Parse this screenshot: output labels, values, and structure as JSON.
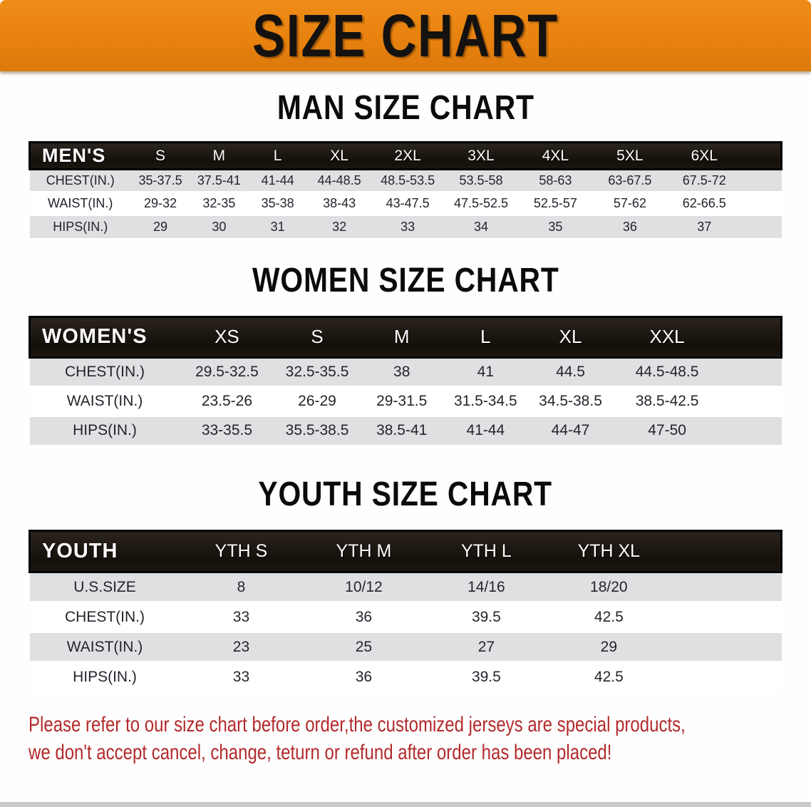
{
  "banner": {
    "title": "SIZE CHART",
    "bg_color": "#E8820F"
  },
  "sections": [
    {
      "heading": "MAN SIZE CHART",
      "table": {
        "header_label": "MEN'S",
        "columns": [
          "S",
          "M",
          "L",
          "XL",
          "2XL",
          "3XL",
          "4XL",
          "5XL",
          "6XL"
        ],
        "rows": [
          {
            "label": "CHEST(IN.)",
            "values": [
              "35-37.5",
              "37.5-41",
              "41-44",
              "44-48.5",
              "48.5-53.5",
              "53.5-58",
              "58-63",
              "63-67.5",
              "67.5-72"
            ]
          },
          {
            "label": "WAIST(IN.)",
            "values": [
              "29-32",
              "32-35",
              "35-38",
              "38-43",
              "43-47.5",
              "47.5-52.5",
              "52.5-57",
              "57-62",
              "62-66.5"
            ]
          },
          {
            "label": "HIPS(IN.)",
            "values": [
              "29",
              "30",
              "31",
              "32",
              "33",
              "34",
              "35",
              "36",
              "37"
            ]
          }
        ]
      }
    },
    {
      "heading": "WOMEN SIZE CHART",
      "table": {
        "header_label": "WOMEN'S",
        "columns": [
          "XS",
          "S",
          "M",
          "L",
          "XL",
          "XXL"
        ],
        "rows": [
          {
            "label": "CHEST(IN.)",
            "values": [
              "29.5-32.5",
              "32.5-35.5",
              "38",
              "41",
              "44.5",
              "44.5-48.5"
            ]
          },
          {
            "label": "WAIST(IN.)",
            "values": [
              "23.5-26",
              "26-29",
              "29-31.5",
              "31.5-34.5",
              "34.5-38.5",
              "38.5-42.5"
            ]
          },
          {
            "label": "HIPS(IN.)",
            "values": [
              "33-35.5",
              "35.5-38.5",
              "38.5-41",
              "41-44",
              "44-47",
              "47-50"
            ]
          }
        ]
      }
    },
    {
      "heading": "YOUTH SIZE CHART",
      "table": {
        "header_label": "YOUTH",
        "columns": [
          "YTH S",
          "YTH M",
          "YTH L",
          "YTH XL"
        ],
        "rows": [
          {
            "label": "U.S.SIZE",
            "values": [
              "8",
              "10/12",
              "14/16",
              "18/20"
            ]
          },
          {
            "label": "CHEST(IN.)",
            "values": [
              "33",
              "36",
              "39.5",
              "42.5"
            ]
          },
          {
            "label": "WAIST(IN.)",
            "values": [
              "23",
              "25",
              "27",
              "29"
            ]
          },
          {
            "label": "HIPS(IN.)",
            "values": [
              "33",
              "36",
              "39.5",
              "42.5"
            ]
          }
        ]
      }
    }
  ],
  "disclaimer": {
    "lines": [
      "Please refer to our size chart before order,the customized jerseys are special products,",
      "we don't accept cancel, change, teturn or refund after order has been placed!"
    ],
    "color": "#B3292B"
  },
  "colors": {
    "banner_orange": "#E8820F",
    "table_header_bg": "#17110E",
    "row_shade": "#DFE0E1",
    "text_dark": "#24242D"
  }
}
